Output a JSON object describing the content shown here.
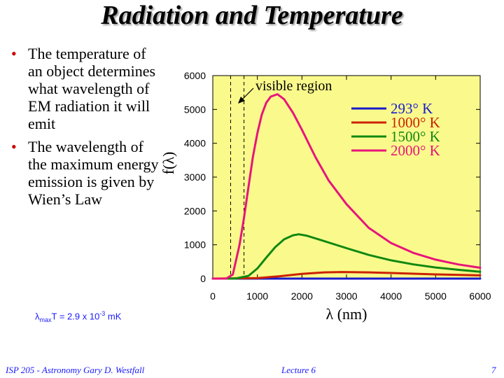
{
  "slide": {
    "title": "Radiation and Temperature",
    "bullets": [
      "The temperature of an object determines what wavelength of EM radiation it will emit",
      "The wavelength of the maximum energy emission is given by Wien’s Law"
    ],
    "formula": {
      "lambda": "λ",
      "sub": "max",
      "mid": "T = 2.9 x 10",
      "exp": "-3",
      "unit": " mK"
    },
    "footer": {
      "left": "ISP 205 - Astronomy   Gary D. Westfall",
      "center": "Lecture 6",
      "page": "7"
    }
  },
  "chart_data": {
    "type": "line",
    "xlabel": "λ (nm)",
    "ylabel": "f(λ)",
    "xlim": [
      0,
      6000
    ],
    "ylim": [
      0,
      6000
    ],
    "xticks": [
      "0",
      "1000",
      "2000",
      "3000",
      "4000",
      "5000",
      "6000"
    ],
    "yticks": [
      "0",
      "1000",
      "2000",
      "3000",
      "4000",
      "5000",
      "6000"
    ],
    "background": "#fafa8c",
    "annotation": "visible region",
    "visible_region": [
      400,
      700
    ],
    "legend_position": "top-right",
    "series": [
      {
        "name": "293° K",
        "color": "#1a1acc",
        "x": [
          0,
          1000,
          2000,
          3000,
          4000,
          5000,
          6000
        ],
        "y": [
          0,
          0,
          0,
          0,
          0,
          0,
          0
        ]
      },
      {
        "name": "1000° K",
        "color": "#cc2200",
        "x": [
          0,
          1000,
          1500,
          2000,
          2500,
          2900,
          3500,
          4000,
          5000,
          6000
        ],
        "y": [
          0,
          15,
          70,
          140,
          185,
          195,
          185,
          165,
          125,
          95
        ]
      },
      {
        "name": "1500° K",
        "color": "#118811",
        "x": [
          0,
          500,
          800,
          1000,
          1200,
          1400,
          1600,
          1800,
          1930,
          2100,
          2400,
          3000,
          3500,
          4000,
          4500,
          5000,
          5500,
          6000
        ],
        "y": [
          0,
          0,
          80,
          300,
          620,
          930,
          1160,
          1280,
          1310,
          1270,
          1150,
          900,
          700,
          540,
          420,
          330,
          260,
          200
        ]
      },
      {
        "name": "2000° K",
        "color": "#e8147a",
        "x": [
          0,
          300,
          450,
          600,
          700,
          800,
          900,
          1000,
          1100,
          1200,
          1300,
          1450,
          1600,
          1800,
          2000,
          2300,
          2600,
          3000,
          3500,
          4000,
          4500,
          5000,
          5500,
          6000
        ],
        "y": [
          0,
          0,
          120,
          1000,
          1800,
          2700,
          3600,
          4300,
          4850,
          5200,
          5380,
          5450,
          5300,
          4900,
          4400,
          3600,
          2900,
          2200,
          1500,
          1050,
          760,
          560,
          420,
          320
        ]
      }
    ]
  }
}
